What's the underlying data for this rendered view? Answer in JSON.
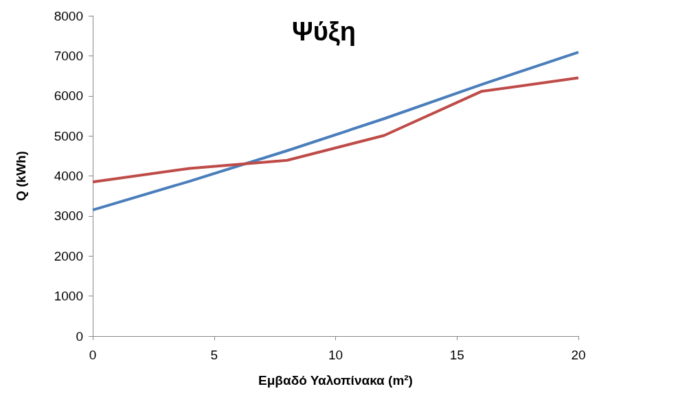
{
  "chart_data": {
    "type": "line",
    "title": "Ψύξη",
    "xlabel": "Εμβαδό Υαλοπίνακα (m²)",
    "ylabel": "Q (kWh)",
    "x": [
      0,
      4,
      8,
      12,
      16,
      20
    ],
    "series": [
      {
        "color": "#4a7ebb",
        "values": [
          3150,
          3870,
          4630,
          5430,
          6280,
          7090
        ]
      },
      {
        "color": "#be4b48",
        "values": [
          3850,
          4190,
          4390,
          5010,
          6110,
          6450
        ]
      }
    ],
    "xlim": [
      0,
      20
    ],
    "xticks": [
      0,
      5,
      10,
      15,
      20
    ],
    "ylim": [
      0,
      8000
    ],
    "yticks": [
      0,
      1000,
      2000,
      3000,
      4000,
      5000,
      6000,
      7000,
      8000
    ],
    "grid": false,
    "marker": "none",
    "line_style": "solid"
  }
}
